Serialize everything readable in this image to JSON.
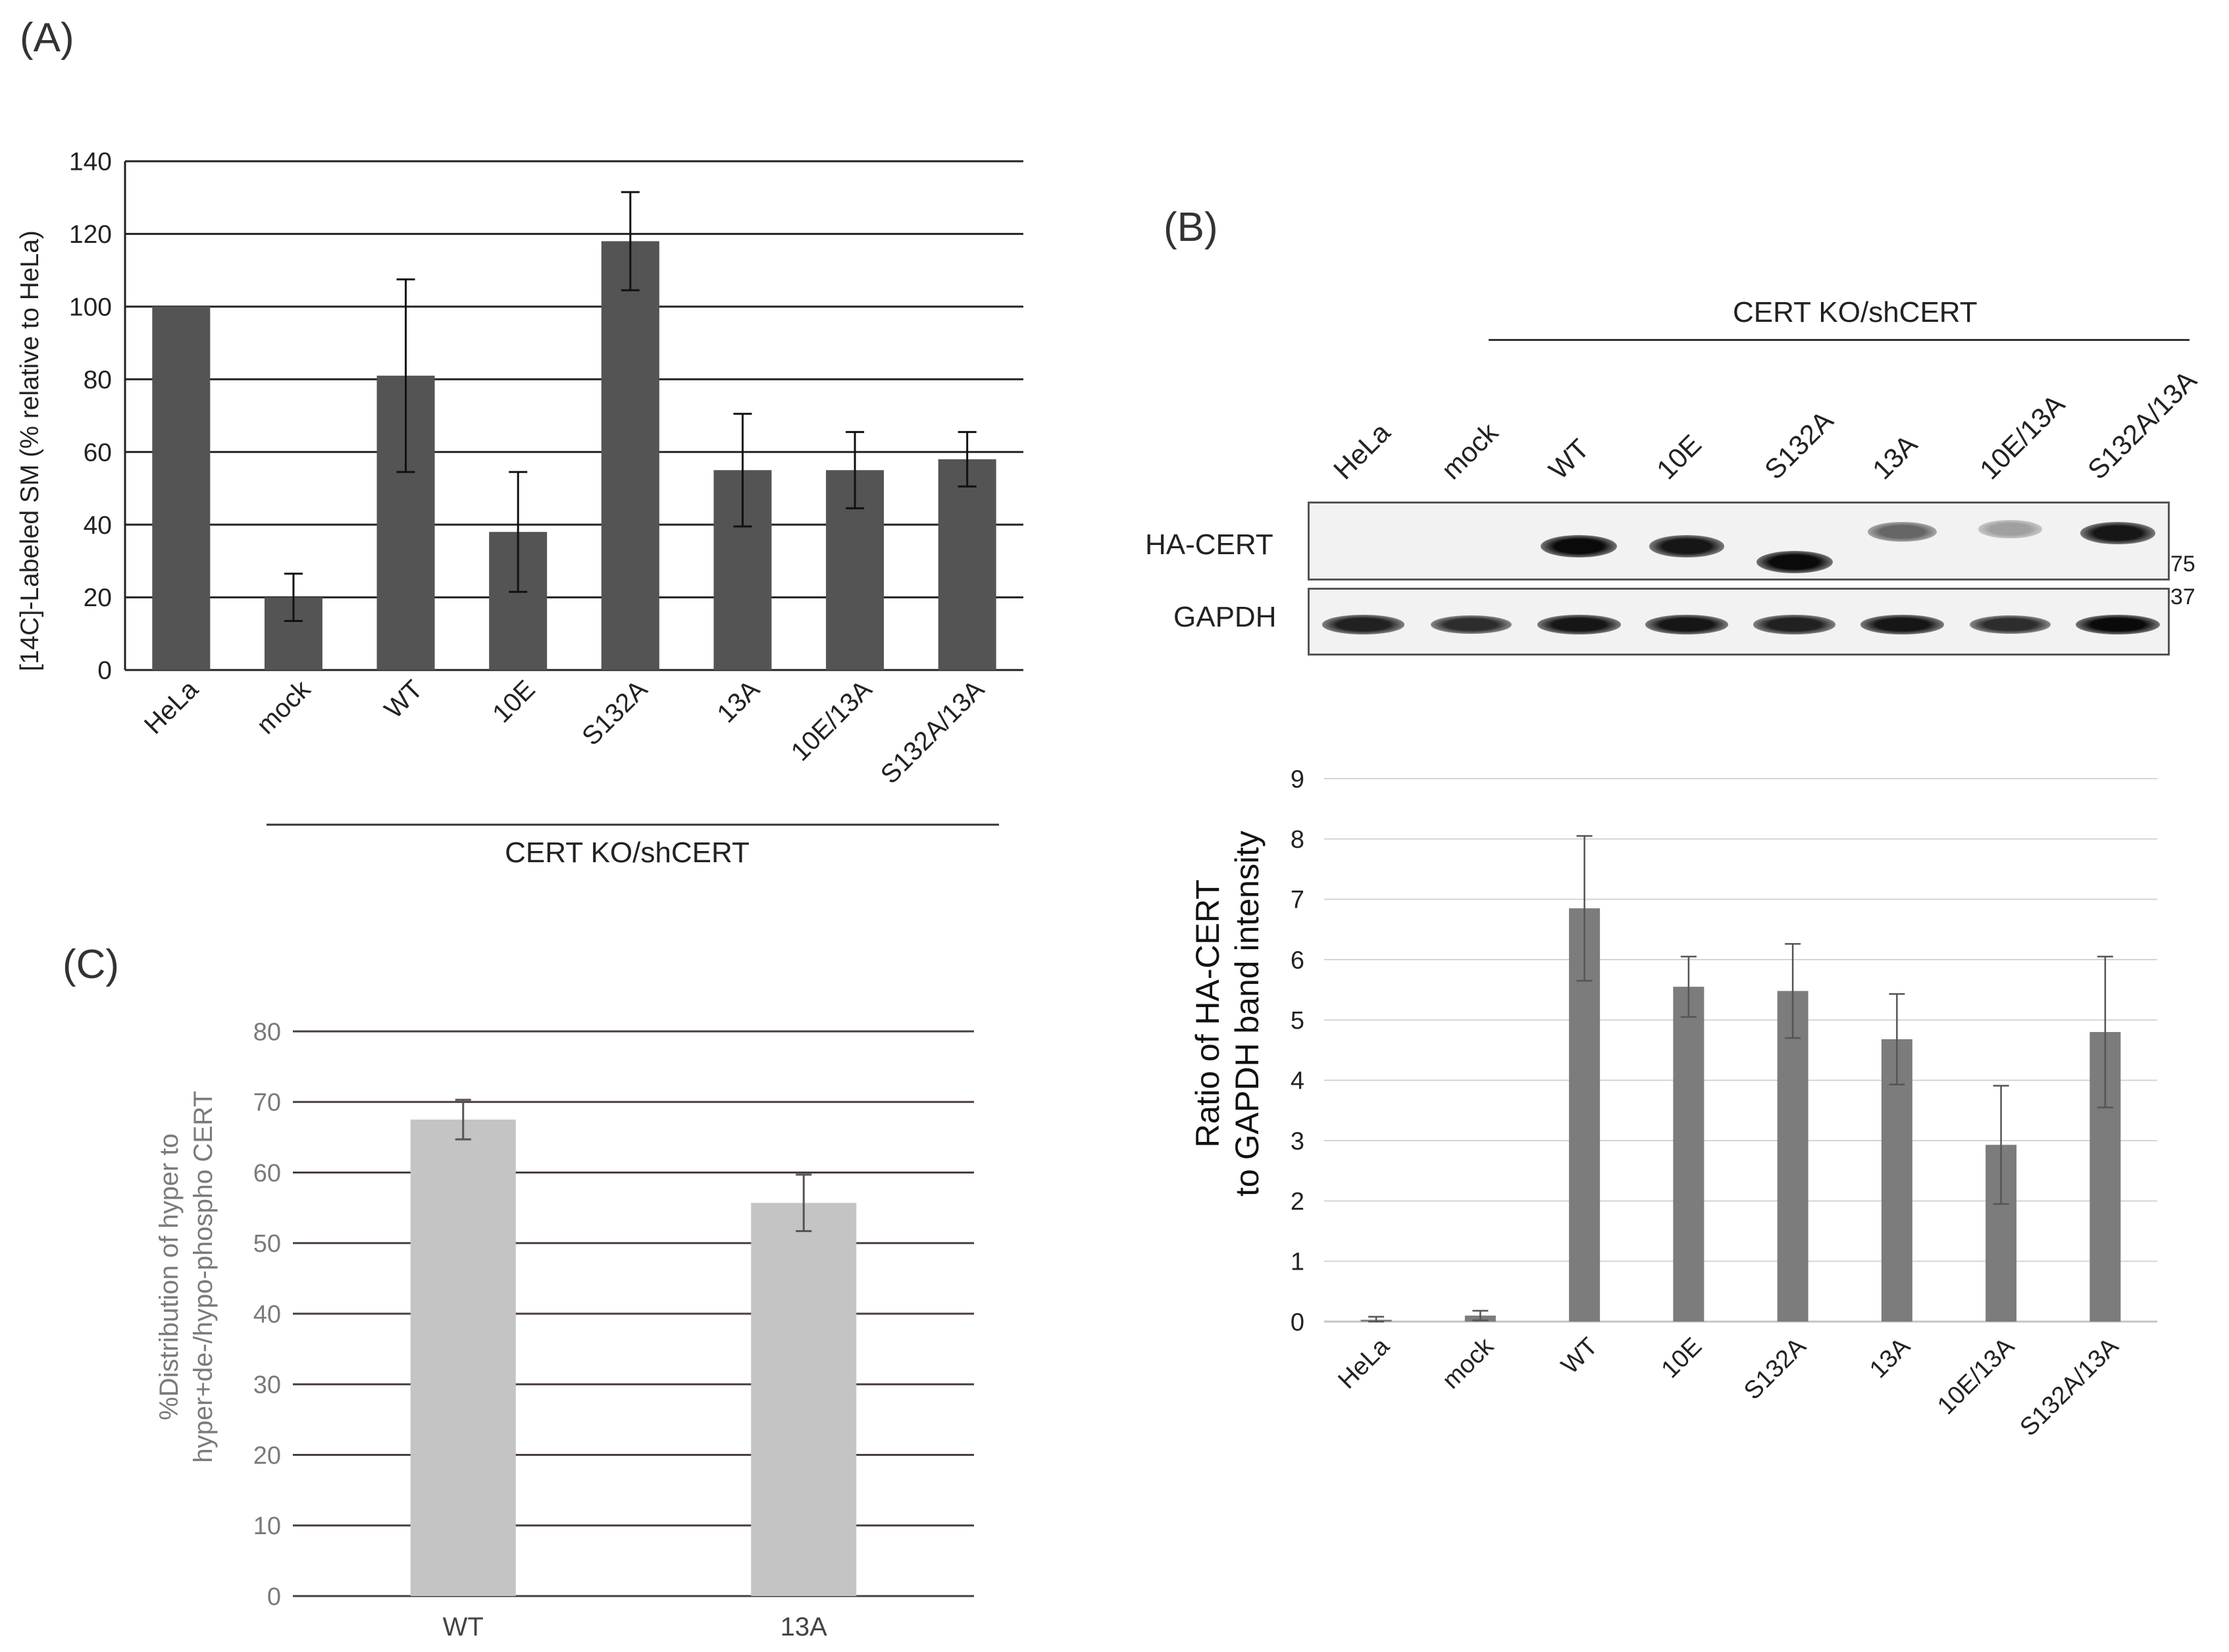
{
  "figure": {
    "panel_labels": {
      "a": "(A)",
      "b": "(B)",
      "c": "(C)"
    },
    "group_label": "CERT KO/shCERT"
  },
  "chart_data": [
    {
      "id": "A",
      "type": "bar",
      "categories": [
        "HeLa",
        "mock",
        "WT",
        "10E",
        "S132A",
        "13A",
        "10E/13A",
        "S132A/13A"
      ],
      "values": [
        100,
        20,
        81,
        38,
        118,
        55,
        55,
        58
      ],
      "errors": [
        0,
        6.5,
        26.5,
        16.5,
        13.5,
        15.5,
        10.5,
        7.5
      ],
      "ylabel": "[14C]-Labeled SM (% relative to HeLa)",
      "ylim": [
        0,
        140
      ],
      "yticks": [
        0,
        20,
        40,
        60,
        80,
        100,
        120,
        140
      ],
      "group_label": "CERT KO/shCERT",
      "grid": true
    },
    {
      "id": "B",
      "type": "bar",
      "categories": [
        "HeLa",
        "mock",
        "WT",
        "10E",
        "S132A",
        "13A",
        "10E/13A",
        "S132A/13A"
      ],
      "values": [
        0.03,
        0.1,
        6.85,
        5.55,
        5.48,
        4.68,
        2.93,
        4.8
      ],
      "errors": [
        0.05,
        0.08,
        1.2,
        0.5,
        0.78,
        0.75,
        0.98,
        1.25
      ],
      "ylabel_lines": [
        "Ratio of HA-CERT",
        "to GAPDH band intensity"
      ],
      "ylim": [
        0,
        9
      ],
      "yticks": [
        0,
        1,
        2,
        3,
        4,
        5,
        6,
        7,
        8,
        9
      ],
      "grid": true
    },
    {
      "id": "C",
      "type": "bar",
      "categories": [
        "WT",
        "13A"
      ],
      "values": [
        67.5,
        55.7
      ],
      "errors": [
        2.8,
        4.0
      ],
      "ylabel_lines": [
        "%Distribution of hyper to",
        "hyper+de-/hypo-phospho CERT"
      ],
      "ylim": [
        0,
        80
      ],
      "yticks": [
        0,
        10,
        20,
        30,
        40,
        50,
        60,
        70,
        80
      ],
      "grid": true
    }
  ],
  "blot": {
    "group_label": "CERT KO/shCERT",
    "lanes": [
      "HeLa",
      "mock",
      "WT",
      "10E",
      "S132A",
      "13A",
      "10E/13A",
      "S132A/13A"
    ],
    "rows": [
      {
        "label": "HA-CERT",
        "intensity": [
          0,
          0,
          1,
          0.95,
          1,
          0.6,
          0.35,
          0.95
        ]
      },
      {
        "label": "GAPDH",
        "intensity": [
          0.9,
          0.85,
          0.95,
          0.95,
          0.9,
          0.95,
          0.85,
          1
        ]
      }
    ],
    "markers": [
      "75",
      "37"
    ]
  }
}
